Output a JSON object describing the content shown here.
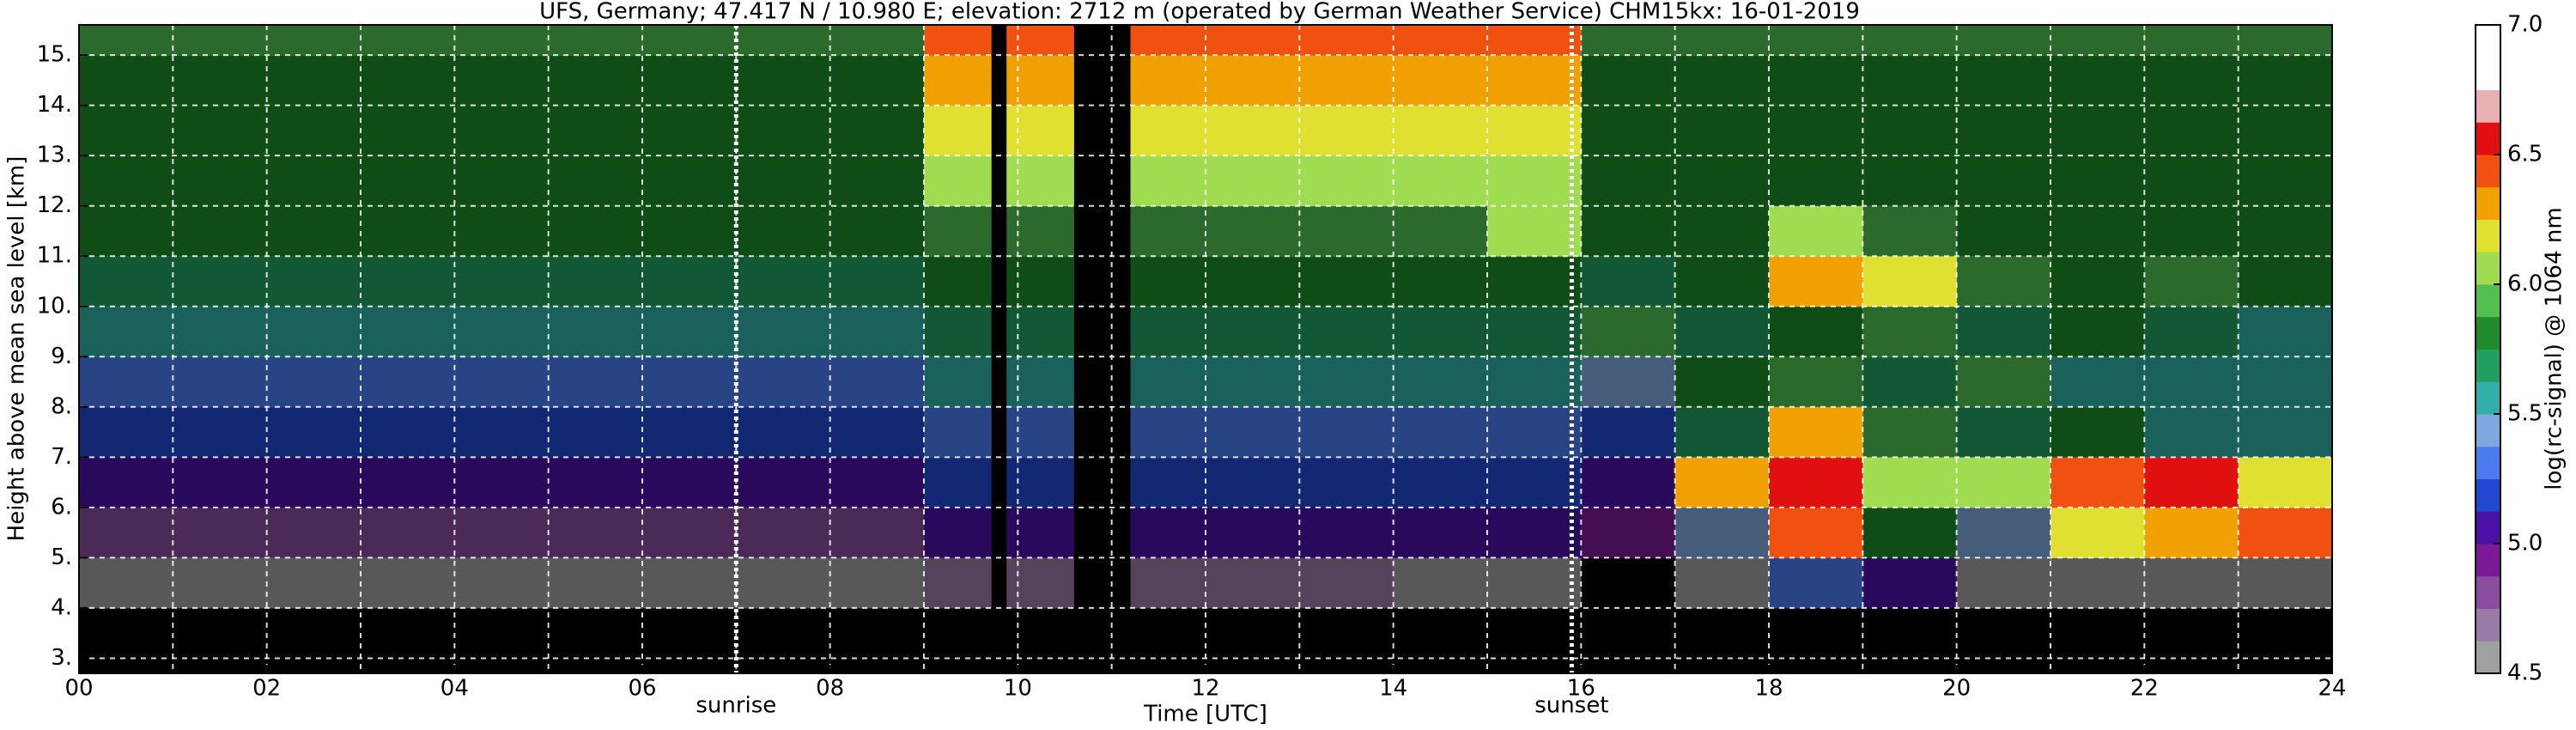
{
  "chart_data": {
    "type": "heatmap",
    "title": "UFS, Germany; 47.417 N / 10.980 E; elevation: 2712 m  (operated by German Weather Service)    CHM15kx: 16-01-2019",
    "x_label": "Time [UTC]",
    "y_label": "Height above mean sea level [km]",
    "colorbar_label": "log(rc-signal) @ 1064 nm",
    "xlim": [
      0,
      24
    ],
    "ylim": [
      2.7,
      15.6
    ],
    "xticks": [
      {
        "value": 0,
        "label": "00"
      },
      {
        "value": 2,
        "label": "02"
      },
      {
        "value": 4,
        "label": "04"
      },
      {
        "value": 6,
        "label": "06"
      },
      {
        "value": 8,
        "label": "08"
      },
      10,
      12,
      14,
      16,
      18,
      20,
      22,
      24
    ],
    "x_minor_ticks": [
      1,
      3,
      5,
      7,
      9,
      11,
      13,
      15,
      17,
      19,
      21,
      23
    ],
    "yticks": [
      {
        "value": 3,
        "label": "3."
      },
      {
        "value": 4,
        "label": "4."
      },
      {
        "value": 5,
        "label": "5."
      },
      {
        "value": 6,
        "label": "6."
      },
      {
        "value": 7,
        "label": "7."
      },
      {
        "value": 8,
        "label": "8."
      },
      {
        "value": 9,
        "label": "9."
      },
      {
        "value": 10,
        "label": "10."
      },
      {
        "value": 11,
        "label": "11."
      },
      {
        "value": 12,
        "label": "12."
      },
      {
        "value": 13,
        "label": "13."
      },
      {
        "value": 14,
        "label": "14."
      },
      {
        "value": 15,
        "label": "15."
      }
    ],
    "grid": true,
    "x_bins": [
      0,
      1,
      2,
      3,
      4,
      5,
      6,
      7,
      8,
      9,
      10,
      11,
      12,
      13,
      14,
      15,
      16,
      17,
      18,
      19,
      20,
      21,
      22,
      23,
      24
    ],
    "y_bins": [
      2.7,
      4,
      5,
      6,
      7,
      8,
      9,
      10,
      11,
      12,
      13,
      14,
      15,
      15.6
    ],
    "z": [
      [
        4.2,
        4.2,
        4.2,
        4.2,
        4.2,
        4.2,
        4.2,
        4.2,
        4.2,
        4.3,
        4.3,
        4.3,
        4.3,
        4.3,
        4.2,
        4.2,
        4.2,
        4.2,
        4.2,
        4.2,
        4.2,
        4.2,
        4.2,
        4.2
      ],
      [
        4.5,
        4.5,
        4.5,
        4.5,
        4.5,
        4.5,
        4.5,
        4.5,
        4.5,
        4.7,
        4.7,
        4.7,
        4.7,
        4.7,
        4.6,
        4.5,
        4.4,
        4.5,
        5.3,
        5.0,
        4.6,
        4.6,
        4.6,
        4.6
      ],
      [
        4.85,
        4.85,
        4.85,
        4.85,
        4.85,
        4.85,
        4.85,
        4.85,
        4.85,
        5.0,
        5.0,
        5.0,
        5.0,
        5.0,
        5.0,
        5.0,
        4.9,
        5.4,
        6.4,
        5.8,
        5.4,
        6.2,
        6.3,
        6.4
      ],
      [
        5.05,
        5.05,
        5.05,
        5.05,
        5.05,
        5.05,
        5.05,
        5.05,
        5.05,
        5.2,
        5.2,
        5.2,
        5.2,
        5.2,
        5.2,
        5.2,
        5.0,
        6.3,
        6.5,
        6.0,
        6.1,
        6.4,
        6.5,
        6.2
      ],
      [
        5.2,
        5.2,
        5.2,
        5.2,
        5.2,
        5.2,
        5.2,
        5.2,
        5.2,
        5.35,
        5.35,
        5.35,
        5.35,
        5.35,
        5.35,
        5.35,
        5.2,
        5.7,
        6.3,
        5.9,
        5.7,
        5.8,
        5.6,
        5.5
      ],
      [
        5.35,
        5.35,
        5.35,
        5.35,
        5.35,
        5.35,
        5.35,
        5.35,
        5.35,
        5.5,
        5.5,
        5.5,
        5.5,
        5.5,
        5.5,
        5.5,
        5.4,
        5.8,
        5.9,
        5.7,
        5.9,
        5.6,
        5.6,
        5.5
      ],
      [
        5.5,
        5.5,
        5.5,
        5.5,
        5.5,
        5.5,
        5.5,
        5.5,
        5.5,
        5.65,
        5.65,
        5.65,
        5.65,
        5.65,
        5.65,
        5.65,
        5.9,
        5.7,
        5.8,
        5.9,
        5.7,
        5.8,
        5.7,
        5.6
      ],
      [
        5.65,
        5.65,
        5.65,
        5.65,
        5.65,
        5.65,
        5.65,
        5.65,
        5.65,
        5.8,
        5.8,
        5.8,
        5.8,
        5.8,
        5.8,
        5.8,
        5.7,
        5.8,
        6.3,
        6.2,
        5.9,
        5.8,
        5.9,
        5.8
      ],
      [
        5.75,
        5.75,
        5.75,
        5.75,
        5.75,
        5.75,
        5.75,
        5.75,
        5.75,
        5.9,
        5.9,
        5.9,
        5.9,
        5.9,
        5.9,
        6.1,
        5.8,
        5.8,
        6.0,
        5.9,
        5.8,
        5.8,
        5.8,
        5.8
      ],
      [
        5.8,
        5.8,
        5.8,
        5.8,
        5.8,
        5.8,
        5.8,
        5.8,
        5.8,
        6.1,
        6.1,
        6.1,
        6.1,
        6.1,
        6.1,
        6.1,
        5.8,
        5.8,
        5.8,
        5.8,
        5.8,
        5.8,
        5.8,
        5.8
      ],
      [
        5.85,
        5.85,
        5.85,
        5.85,
        5.85,
        5.85,
        5.85,
        5.85,
        5.85,
        6.2,
        6.2,
        6.2,
        6.2,
        6.2,
        6.2,
        6.2,
        5.85,
        5.85,
        5.85,
        5.85,
        5.85,
        5.85,
        5.85,
        5.85
      ],
      [
        5.85,
        5.85,
        5.85,
        5.85,
        5.85,
        5.85,
        5.85,
        5.85,
        5.85,
        6.3,
        6.3,
        6.3,
        6.3,
        6.3,
        6.3,
        6.3,
        5.85,
        5.85,
        5.85,
        5.85,
        5.85,
        5.85,
        5.85,
        5.85
      ],
      [
        5.9,
        5.9,
        5.9,
        5.9,
        5.9,
        5.9,
        5.9,
        5.9,
        5.9,
        6.4,
        6.4,
        6.4,
        6.4,
        6.4,
        6.4,
        6.4,
        5.9,
        5.9,
        5.9,
        5.9,
        5.9,
        5.9,
        5.9,
        5.9
      ]
    ],
    "gaps": [
      [
        9.72,
        9.88
      ],
      [
        10.6,
        11.2
      ]
    ],
    "clim": [
      4.5,
      7.0
    ],
    "cticks": [
      4.5,
      {
        "value": 5,
        "label": "5.0"
      },
      5.5,
      {
        "value": 6,
        "label": "6.0"
      },
      6.5,
      {
        "value": 7,
        "label": "7.0"
      }
    ],
    "colormap": [
      "#a0a0a0",
      "#9a7aa6",
      "#8a4c9e",
      "#7a1a96",
      "#4a10a8",
      "#2048d0",
      "#4a7cf0",
      "#80a8e0",
      "#30b0a8",
      "#20a060",
      "#1e8c28",
      "#50c050",
      "#a0dc50",
      "#e0e030",
      "#f0a000",
      "#f05010",
      "#e01010",
      "#e8b0b0",
      "#ffffff",
      "#ffffff"
    ],
    "under_color": "#000000",
    "annotations": [
      {
        "x": 7.0,
        "label": "sunrise"
      },
      {
        "x": 15.9,
        "label": "sunset"
      }
    ]
  }
}
